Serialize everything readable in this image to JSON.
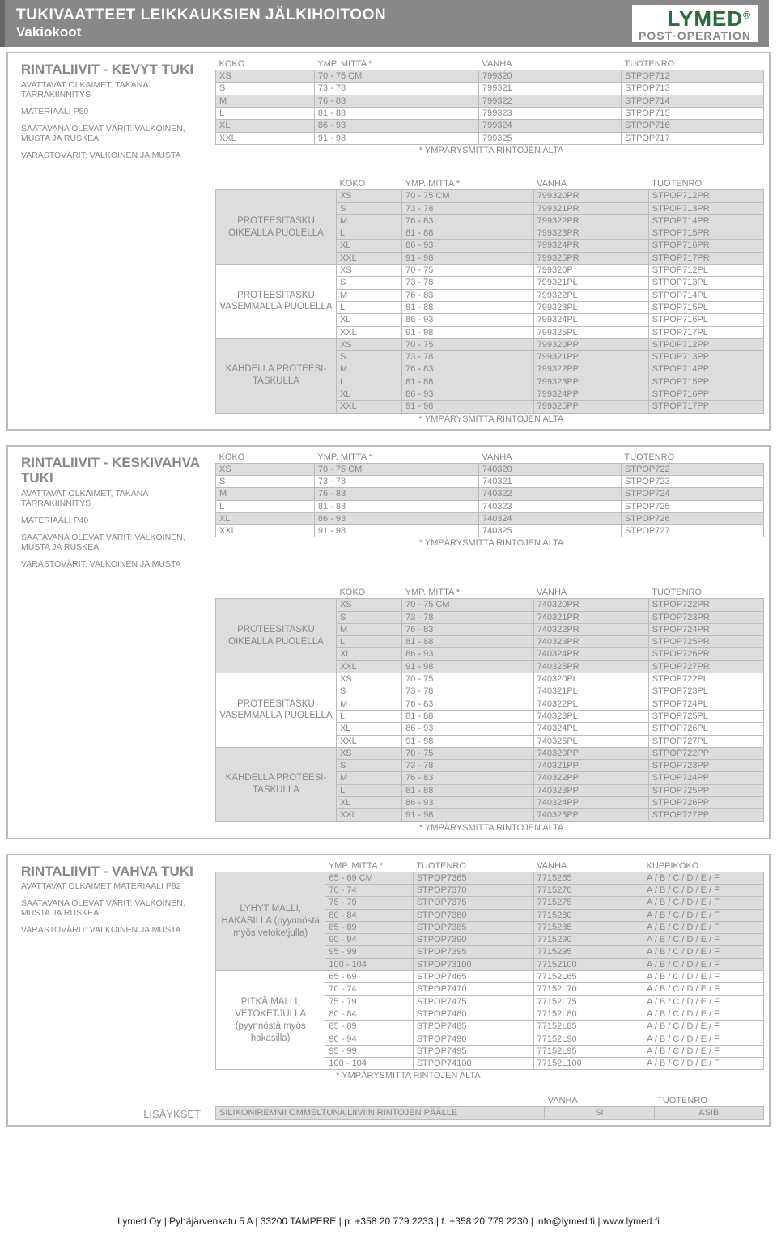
{
  "header": {
    "title": "TUKIVAATTEET LEIKKAUKSIEN JÄLKIHOITOON",
    "subtitle": "Vakiokoot",
    "logo_top": "LYMED",
    "logo_bot": "POST·OPERATION",
    "logo_r": "®"
  },
  "col_headers": {
    "koko": "KOKO",
    "mitta": "YMP. MITTA *",
    "vanha": "VANHA",
    "nro": "TUOTENRO",
    "kuppi": "KUPPIKOKO"
  },
  "footnote": "* YMPÄRYSMITTA RINTOJEN ALTA",
  "s1": {
    "title": "RINTALIIVIT - KEVYT TUKI",
    "p1": "AVATTAVAT OLKAIMET, TAKANA TARRAKIINNITYS",
    "p2": "MATERIAALI P50",
    "p3": "SAATAVANA OLEVAT VÄRIT: VALKOINEN, MUSTA JA RUSKEA",
    "p4": "VARASTOVÄRIT: VALKOINEN JA MUSTA",
    "g1": "PROTEESITASKU OIKEALLA PUOLELLA",
    "g2": "PROTEESITASKU VASEMMALLA PUOLELLA",
    "g3": "KAHDELLA PROTEESI- TASKULLA",
    "basic": [
      [
        "XS",
        "70 - 75 CM",
        "799320",
        "STPOP712"
      ],
      [
        "S",
        "73 - 78",
        "799321",
        "STPOP713"
      ],
      [
        "M",
        "76 - 83",
        "799322",
        "STPOP714"
      ],
      [
        "L",
        "81 - 88",
        "799323",
        "STPOP715"
      ],
      [
        "XL",
        "86 - 93",
        "799324",
        "STPOP716"
      ],
      [
        "XXL",
        "91 - 98",
        "799325",
        "STPOP717"
      ]
    ],
    "pr": [
      [
        "XS",
        "70 - 75 CM",
        "799320PR",
        "STPOP712PR"
      ],
      [
        "S",
        "73 - 78",
        "799321PR",
        "STPOP713PR"
      ],
      [
        "M",
        "76 - 83",
        "799322PR",
        "STPOP714PR"
      ],
      [
        "L",
        "81 - 88",
        "799323PR",
        "STPOP715PR"
      ],
      [
        "XL",
        "86 - 93",
        "799324PR",
        "STPOP716PR"
      ],
      [
        "XXL",
        "91 - 98",
        "799325PR",
        "STPOP717PR"
      ]
    ],
    "pl": [
      [
        "XS",
        "70 - 75",
        "799320P",
        "STPOP712PL"
      ],
      [
        "S",
        "73 - 78",
        "799321PL",
        "STPOP713PL"
      ],
      [
        "M",
        "76 - 83",
        "799322PL",
        "STPOP714PL"
      ],
      [
        "L",
        "81 - 88",
        "799323PL",
        "STPOP715PL"
      ],
      [
        "XL",
        "86 - 93",
        "799324PL",
        "STPOP716PL"
      ],
      [
        "XXL",
        "91 - 98",
        "799325PL",
        "STPOP717PL"
      ]
    ],
    "pp": [
      [
        "XS",
        "70 - 75",
        "799320PP",
        "STPOP712PP"
      ],
      [
        "S",
        "73 - 78",
        "799321PP",
        "STPOP713PP"
      ],
      [
        "M",
        "76 - 83",
        "799322PP",
        "STPOP714PP"
      ],
      [
        "L",
        "81 - 88",
        "799323PP",
        "STPOP715PP"
      ],
      [
        "XL",
        "86 - 93",
        "799324PP",
        "STPOP716PP"
      ],
      [
        "XXL",
        "91 - 98",
        "799325PP",
        "STPOP717PP"
      ]
    ]
  },
  "s2": {
    "title": "RINTALIIVIT - KESKIVAHVA TUKI",
    "p1": "AVATTAVAT OLKAIMET, TAKANA TARRAKIINNITYS",
    "p2": "MATERIAALI P40",
    "p3": "SAATAVANA OLEVAT VÄRIT: VALKOINEN, MUSTA JA RUSKEA",
    "p4": "VARASTOVÄRIT: VALKOINEN JA MUSTA",
    "g1": "PROTEESITASKU OIKEALLA PUOLELLA",
    "g2": "PROTEESITASKU VASEMMALLA PUOLELLA",
    "g3": "KAHDELLA PROTEESI- TASKULLA",
    "basic": [
      [
        "XS",
        "70 - 75 CM",
        "740320",
        "STPOP722"
      ],
      [
        "S",
        "73 - 78",
        "740321",
        "STPOP723"
      ],
      [
        "M",
        "76 - 83",
        "740322",
        "STPOP724"
      ],
      [
        "L",
        "81 - 88",
        "740323",
        "STPOP725"
      ],
      [
        "XL",
        "86 - 93",
        "740324",
        "STPOP726"
      ],
      [
        "XXL",
        "91 - 98",
        "740325",
        "STPOP727"
      ]
    ],
    "pr": [
      [
        "XS",
        "70 - 75 CM",
        "740320PR",
        "STPOP722PR"
      ],
      [
        "S",
        "73 - 78",
        "740321PR",
        "STPOP723PR"
      ],
      [
        "M",
        "76 - 83",
        "740322PR",
        "STPOP724PR"
      ],
      [
        "L",
        "81 - 88",
        "740323PR",
        "STPOP725PR"
      ],
      [
        "XL",
        "86 - 93",
        "740324PR",
        "STPOP726PR"
      ],
      [
        "XXL",
        "91 - 98",
        "740325PR",
        "STPOP727PR"
      ]
    ],
    "pl": [
      [
        "XS",
        "70 - 75",
        "740320PL",
        "STPOP722PL"
      ],
      [
        "S",
        "73 - 78",
        "740321PL",
        "STPOP723PL"
      ],
      [
        "M",
        "76 - 83",
        "740322PL",
        "STPOP724PL"
      ],
      [
        "L",
        "81 - 88",
        "740323PL",
        "STPOP725PL"
      ],
      [
        "XL",
        "86 - 93",
        "740324PL",
        "STPOP726PL"
      ],
      [
        "XXL",
        "91 - 98",
        "740325PL",
        "STPOP727PL"
      ]
    ],
    "pp": [
      [
        "XS",
        "70 - 75",
        "740320PP",
        "STPOP722PP"
      ],
      [
        "S",
        "73 - 78",
        "740321PP",
        "STPOP723PP"
      ],
      [
        "M",
        "76 - 83",
        "740322PP",
        "STPOP724PP"
      ],
      [
        "L",
        "81 - 88",
        "740323PP",
        "STPOP725PP"
      ],
      [
        "XL",
        "86 - 93",
        "740324PP",
        "STPOP726PP"
      ],
      [
        "XXL",
        "91 - 98",
        "740325PP",
        "STPOP727PP"
      ]
    ]
  },
  "s3": {
    "title": "RINTALIIVIT - VAHVA TUKI",
    "p1": "AVATTAVAT OLKAIMET MATERIAALI P92",
    "p3": "SAATAVANA OLEVAT VÄRIT: VALKOINEN, MUSTA JA RUSKEA",
    "p4": "VARASTOVÄRIT: VALKOINEN JA MUSTA",
    "g1": "LYHYT MALLI, HAKASILLA (pyynnöstä myös vetoketjulla)",
    "g2": "PITKÄ MALLI, VETOKETJULLA (pyynnöstä myös hakasilla)",
    "cup": "A / B / C / D / E / F",
    "short": [
      [
        "65 - 69 CM",
        "STPOP7365",
        "7715265"
      ],
      [
        "70 - 74",
        "STPOP7370",
        "7715270"
      ],
      [
        "75 - 79",
        "STPOP7375",
        "7715275"
      ],
      [
        "80 - 84",
        "STPOP7380",
        "7715280"
      ],
      [
        "85 - 89",
        "STPOP7385",
        "7715285"
      ],
      [
        "90 - 94",
        "STPOP7390",
        "7715290"
      ],
      [
        "95 - 99",
        "STPOP7395",
        "7715295"
      ],
      [
        "100 - 104",
        "STPOP73100",
        "77152100"
      ]
    ],
    "long": [
      [
        "65 - 69",
        "STPOP7465",
        "77152L65"
      ],
      [
        "70 - 74",
        "STPOP7470",
        "77152L70"
      ],
      [
        "75 - 79",
        "STPOP7475",
        "77152L75"
      ],
      [
        "80 - 84",
        "STPOP7480",
        "77152L80"
      ],
      [
        "85 - 89",
        "STPOP7485",
        "77152L85"
      ],
      [
        "90 - 94",
        "STPOP7490",
        "77152L90"
      ],
      [
        "95 - 99",
        "STPOP7495",
        "77152L95"
      ],
      [
        "100 - 104",
        "STPOP74100",
        "77152L100"
      ]
    ],
    "lisa_label": "LISÄYKSET",
    "lisa_text": "SILIKONIREMMI OMMELTUNA LIIVIIN RINTOJEN PÄÄLLE",
    "lisa_vanha": "SI",
    "lisa_nro": "ASIB"
  },
  "footer": "Lymed Oy  |  Pyhäjärvenkatu 5 A  |  33200 TAMPERE  |  p. +358 20 779 2233  |  f. +358 20 779 2230  |  info@lymed.fi  |  www.lymed.fi"
}
